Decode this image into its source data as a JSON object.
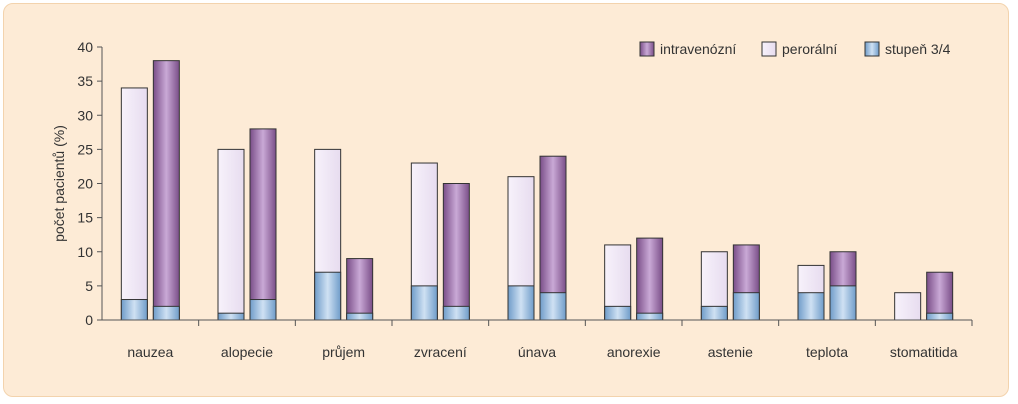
{
  "colors": {
    "background": "#fdebd6",
    "border": "#f3d3ad",
    "axis": "#555555",
    "intravenozni": [
      "#7a4e88",
      "#c9a9d6",
      "#7a4e88"
    ],
    "peroralni": [
      "#f7f2fb",
      "#e7dcef"
    ],
    "stupen": [
      "#6f9cc9",
      "#cfe1f3",
      "#6f9cc9"
    ]
  },
  "chart_data": {
    "type": "bar",
    "title": "",
    "xlabel": "",
    "ylabel": "počet pacientů (%)",
    "ylim": [
      0,
      40
    ],
    "yticks": [
      0,
      5,
      10,
      15,
      20,
      25,
      30,
      35,
      40
    ],
    "grid": false,
    "legend_position": "top-right",
    "categories": [
      "nauzea",
      "alopecie",
      "průjem",
      "zvracení",
      "únava",
      "anorexie",
      "astenie",
      "teplota",
      "stomatitida"
    ],
    "series": [
      {
        "name": "intravenózní",
        "values": [
          38,
          28,
          9,
          20,
          24,
          12,
          11,
          10,
          7
        ]
      },
      {
        "name": "perorální",
        "values": [
          34,
          25,
          25,
          23,
          21,
          11,
          10,
          8,
          4
        ]
      },
      {
        "name": "stupeň 3/4",
        "values_peroralni": [
          3,
          1,
          7,
          5,
          5,
          2,
          2,
          4,
          0
        ],
        "values_intravenozni": [
          2,
          3,
          1,
          2,
          4,
          1,
          4,
          5,
          1
        ]
      }
    ]
  }
}
